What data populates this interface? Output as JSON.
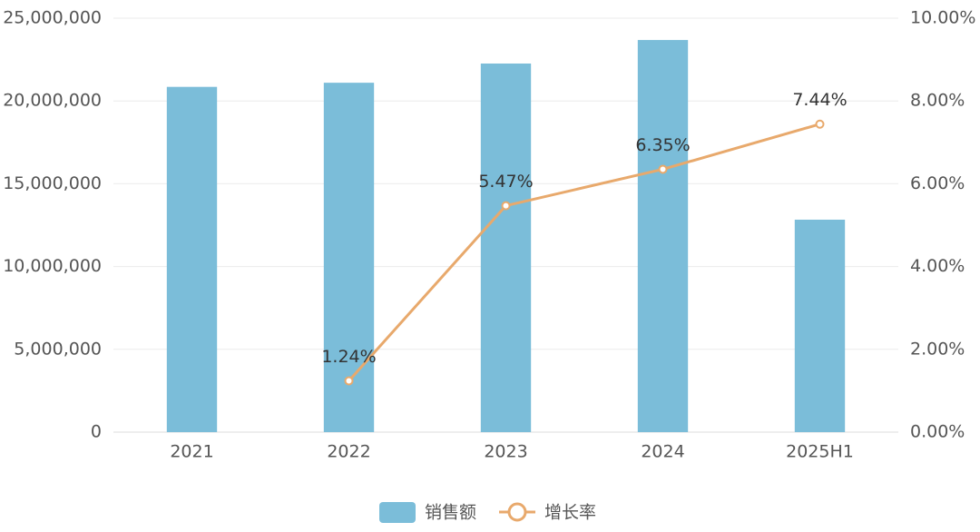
{
  "chart_data": {
    "type": "bar",
    "categories": [
      "2021",
      "2022",
      "2023",
      "2024",
      "2025H1"
    ],
    "series": [
      {
        "name": "销售额",
        "type": "bar",
        "color": "#7bbdd9",
        "values": [
          20850000,
          21100000,
          22260000,
          23680000,
          12830000
        ]
      },
      {
        "name": "增长率",
        "type": "line",
        "axis": "y2",
        "color": "#e8a96c",
        "values": [
          null,
          1.24,
          5.47,
          6.35,
          7.44
        ],
        "value_labels": [
          null,
          "1.24%",
          "5.47%",
          "6.35%",
          "7.44%"
        ]
      }
    ],
    "ylim": [
      0,
      25000000
    ],
    "yticks": [
      0,
      {
        "value": 5000000,
        "label": "5,000,000"
      },
      {
        "value": 10000000,
        "label": "10,000,000"
      },
      {
        "value": 15000000,
        "label": "15,000,000"
      },
      {
        "value": 20000000,
        "label": "20,000,000"
      },
      {
        "value": 25000000,
        "label": "25,000,000"
      }
    ],
    "y2lim": [
      0,
      10
    ],
    "y2ticks": [
      {
        "value": 0,
        "label": "0.00%"
      },
      {
        "value": 2,
        "label": "2.00%"
      },
      {
        "value": 4,
        "label": "4.00%"
      },
      {
        "value": 6,
        "label": "6.00%"
      },
      {
        "value": 8,
        "label": "8.00%"
      },
      {
        "value": 10,
        "label": "10.00%"
      }
    ],
    "grid": true,
    "legend": "bottom"
  }
}
